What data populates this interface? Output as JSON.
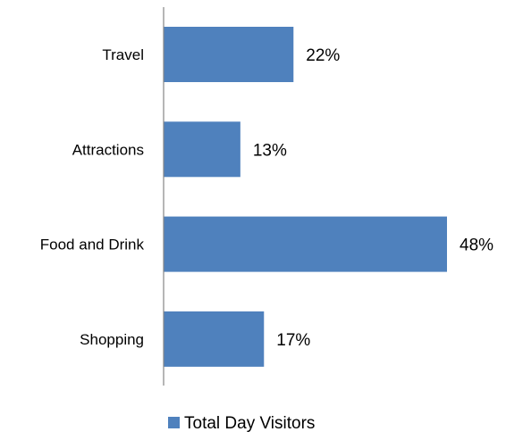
{
  "chart_data": {
    "type": "bar",
    "orientation": "horizontal",
    "categories": [
      "Travel",
      "Attractions",
      "Food and Drink",
      "Shopping"
    ],
    "series": [
      {
        "name": "Total Day Visitors",
        "values": [
          22,
          13,
          48,
          17
        ],
        "value_labels": [
          "22%",
          "13%",
          "48%",
          "17%"
        ],
        "color": "#4F81BD"
      }
    ],
    "value_unit": "%",
    "xlim": [
      0,
      48
    ],
    "grid": false,
    "legend_position": "bottom"
  }
}
